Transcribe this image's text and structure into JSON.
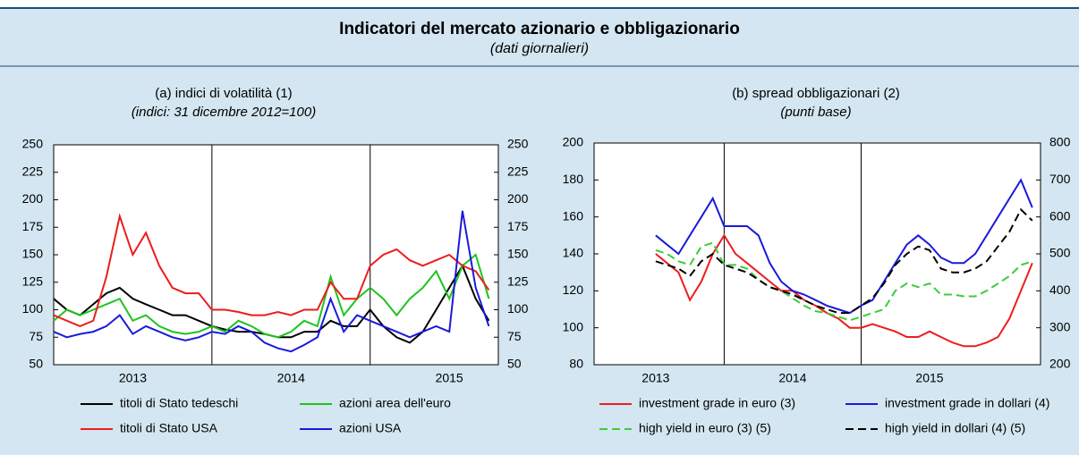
{
  "header": {
    "title": "Indicatori del mercato azionario e obbligazionario",
    "subtitle": "(dati giornalieri)"
  },
  "chart_data": [
    {
      "type": "line",
      "title": "(a) indici di volatilità (1)",
      "subtitle": "(indici: 31 dicembre 2012=100)",
      "x": [
        2013.0,
        2013.083,
        2013.167,
        2013.25,
        2013.333,
        2013.417,
        2013.5,
        2013.583,
        2013.667,
        2013.75,
        2013.833,
        2013.917,
        2014.0,
        2014.083,
        2014.167,
        2014.25,
        2014.333,
        2014.417,
        2014.5,
        2014.583,
        2014.667,
        2014.75,
        2014.833,
        2014.917,
        2015.0,
        2015.083,
        2015.167,
        2015.25,
        2015.333,
        2015.417,
        2015.5,
        2015.583,
        2015.667,
        2015.75
      ],
      "xlim": [
        2013.0,
        2015.81
      ],
      "xticks": [
        {
          "value": 2013.5,
          "label": "2013"
        },
        {
          "value": 2014.5,
          "label": "2014"
        },
        {
          "value": 2015.5,
          "label": "2015"
        }
      ],
      "ylim": [
        50,
        250
      ],
      "yticks": [
        50,
        75,
        100,
        125,
        150,
        175,
        200,
        225,
        250
      ],
      "y2lim": [
        50,
        250
      ],
      "y2ticks": [
        50,
        75,
        100,
        125,
        150,
        175,
        200,
        225,
        250
      ],
      "series": [
        {
          "name": "titoli di Stato tedeschi",
          "color": "#000000",
          "values": [
            110,
            100,
            95,
            105,
            115,
            120,
            110,
            105,
            100,
            95,
            95,
            90,
            85,
            82,
            80,
            80,
            78,
            75,
            75,
            80,
            80,
            90,
            85,
            85,
            100,
            85,
            75,
            70,
            80,
            100,
            120,
            140,
            110,
            90
          ]
        },
        {
          "name": "azioni area dell'euro",
          "color": "#1fc41f",
          "values": [
            90,
            100,
            95,
            100,
            105,
            110,
            90,
            95,
            85,
            80,
            78,
            80,
            85,
            80,
            90,
            85,
            78,
            75,
            80,
            90,
            85,
            130,
            95,
            110,
            120,
            110,
            95,
            110,
            120,
            135,
            110,
            140,
            150,
            110
          ]
        },
        {
          "name": "titoli di Stato USA",
          "color": "#ee1c1c",
          "values": [
            95,
            90,
            85,
            90,
            130,
            185,
            150,
            170,
            140,
            120,
            115,
            115,
            100,
            100,
            98,
            95,
            95,
            98,
            95,
            100,
            100,
            125,
            110,
            110,
            140,
            150,
            155,
            145,
            140,
            145,
            150,
            140,
            135,
            118
          ]
        },
        {
          "name": "azioni USA",
          "color": "#1a1adc",
          "values": [
            80,
            75,
            78,
            80,
            85,
            95,
            78,
            85,
            80,
            75,
            72,
            75,
            80,
            78,
            85,
            80,
            70,
            65,
            62,
            68,
            75,
            110,
            80,
            95,
            90,
            85,
            80,
            75,
            80,
            85,
            80,
            190,
            120,
            85
          ]
        }
      ]
    },
    {
      "type": "line",
      "title": "(b) spread obbligazionari (2)",
      "subtitle": "(punti base)",
      "x": [
        2013.0,
        2013.083,
        2013.167,
        2013.25,
        2013.333,
        2013.417,
        2013.5,
        2013.583,
        2013.667,
        2013.75,
        2013.833,
        2013.917,
        2014.0,
        2014.083,
        2014.167,
        2014.25,
        2014.333,
        2014.417,
        2014.5,
        2014.583,
        2014.667,
        2014.75,
        2014.833,
        2014.917,
        2015.0,
        2015.083,
        2015.167,
        2015.25,
        2015.333,
        2015.417,
        2015.5,
        2015.583,
        2015.667,
        2015.75
      ],
      "xlim": [
        2012.55,
        2015.81
      ],
      "xticks": [
        {
          "value": 2013.0,
          "label": "2013"
        },
        {
          "value": 2014.0,
          "label": "2014"
        },
        {
          "value": 2015.0,
          "label": "2015"
        }
      ],
      "ylim": [
        80,
        200
      ],
      "yticks": [
        80,
        100,
        120,
        140,
        160,
        180,
        200
      ],
      "y2lim": [
        200,
        800
      ],
      "y2ticks": [
        200,
        300,
        400,
        500,
        600,
        700,
        800
      ],
      "series": [
        {
          "name": "investment grade in euro (3)",
          "color": "#ee1c1c",
          "values": [
            140,
            135,
            130,
            115,
            125,
            140,
            150,
            140,
            135,
            130,
            125,
            120,
            120,
            115,
            112,
            108,
            105,
            100,
            100,
            102,
            100,
            98,
            95,
            95,
            98,
            95,
            92,
            90,
            90,
            92,
            95,
            105,
            120,
            135
          ]
        },
        {
          "name": "investment grade in dollari (4)",
          "color": "#1a1adc",
          "values": [
            150,
            145,
            140,
            150,
            160,
            170,
            155,
            155,
            155,
            150,
            135,
            125,
            120,
            118,
            115,
            112,
            110,
            108,
            112,
            115,
            125,
            135,
            145,
            150,
            145,
            138,
            135,
            135,
            140,
            150,
            160,
            170,
            180,
            165
          ]
        },
        {
          "name": "high yield in euro (3) (5)",
          "color": "#3ccc3c",
          "dashed": true,
          "axis": "y2",
          "values": [
            510,
            500,
            480,
            470,
            520,
            530,
            470,
            470,
            460,
            430,
            410,
            400,
            380,
            360,
            345,
            340,
            330,
            320,
            330,
            340,
            350,
            400,
            420,
            410,
            420,
            390,
            390,
            385,
            385,
            400,
            420,
            440,
            470,
            480
          ]
        },
        {
          "name": "high yield in dollari (4) (5)",
          "color": "#000000",
          "dashed": true,
          "axis": "y2",
          "values": [
            480,
            470,
            460,
            440,
            480,
            500,
            470,
            460,
            450,
            430,
            410,
            400,
            390,
            375,
            360,
            350,
            340,
            340,
            360,
            380,
            420,
            470,
            500,
            520,
            510,
            460,
            450,
            450,
            460,
            480,
            520,
            560,
            620,
            590
          ]
        }
      ]
    }
  ]
}
